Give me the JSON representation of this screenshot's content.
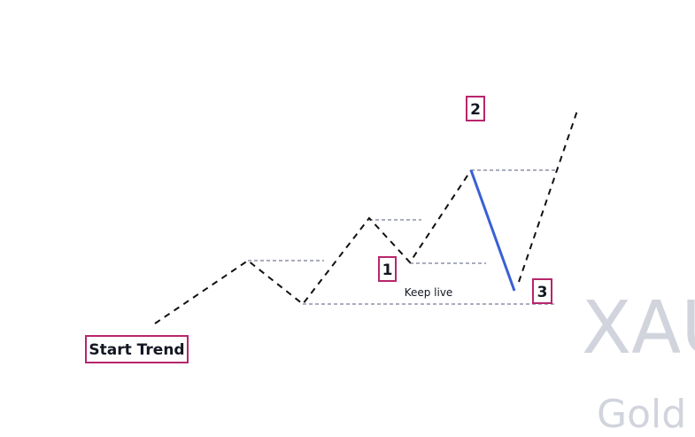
{
  "labels": {
    "start": "Start Trend",
    "point1": "1",
    "point2": "2",
    "point3": "3",
    "note": "Keep live"
  },
  "watermark": {
    "symbol": "XAU",
    "name": "Gold"
  }
}
